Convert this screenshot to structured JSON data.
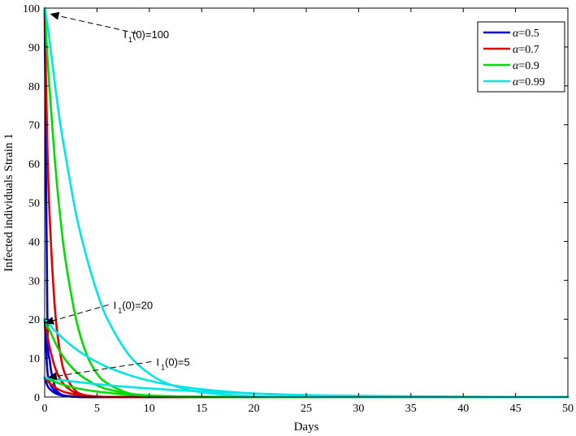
{
  "chart_data": {
    "type": "line",
    "title": "",
    "xlabel": "Days",
    "ylabel": "Infected individuals Strain 1",
    "xlim": [
      0,
      50
    ],
    "ylim": [
      0,
      100
    ],
    "x_ticks": [
      0,
      5,
      10,
      15,
      20,
      25,
      30,
      35,
      40,
      45,
      50
    ],
    "y_ticks": [
      0,
      10,
      20,
      30,
      40,
      50,
      60,
      70,
      80,
      90,
      100
    ],
    "grid": false,
    "legend_position": "top-right",
    "legend_symbol": "α",
    "x": [
      0,
      0.25,
      0.5,
      1,
      1.5,
      2,
      3,
      4,
      5,
      6,
      8,
      10,
      12,
      15,
      20,
      25,
      30,
      40,
      50
    ],
    "series": [
      {
        "name": "=0.5",
        "color": "#0000d9",
        "initial_conditions": [
          {
            "I0": 100,
            "values": [
              100,
              22,
              9,
              2.5,
              0.8,
              0.3,
              0.05,
              0,
              0,
              0,
              0,
              0,
              0,
              0,
              0,
              0,
              0,
              0,
              0
            ]
          },
          {
            "I0": 20,
            "values": [
              20,
              7,
              3.5,
              1.5,
              0.7,
              0.3,
              0.05,
              0,
              0,
              0,
              0,
              0,
              0,
              0,
              0,
              0,
              0,
              0,
              0
            ]
          },
          {
            "I0": 5,
            "values": [
              5,
              3,
              2,
              1,
              0.5,
              0.3,
              0.1,
              0,
              0,
              0,
              0,
              0,
              0,
              0,
              0,
              0,
              0,
              0,
              0
            ]
          }
        ]
      },
      {
        "name": "=0.7",
        "color": "#e00000",
        "initial_conditions": [
          {
            "I0": 100,
            "values": [
              100,
              65,
              45,
              22,
              11,
              5.5,
              1.5,
              0.4,
              0.1,
              0,
              0,
              0,
              0,
              0,
              0,
              0,
              0,
              0,
              0
            ]
          },
          {
            "I0": 20,
            "values": [
              20,
              16,
              12.5,
              7.5,
              4.5,
              2.8,
              1,
              0.4,
              0.15,
              0,
              0,
              0,
              0,
              0,
              0,
              0,
              0,
              0,
              0
            ]
          },
          {
            "I0": 5,
            "values": [
              5,
              4.2,
              3.5,
              2.5,
              1.7,
              1.2,
              0.6,
              0.3,
              0.1,
              0,
              0,
              0,
              0,
              0,
              0,
              0,
              0,
              0,
              0
            ]
          }
        ]
      },
      {
        "name": "=0.9",
        "color": "#00dd00",
        "initial_conditions": [
          {
            "I0": 100,
            "values": [
              100,
              88,
              78,
              60,
              46,
              35,
              20,
              11,
              6,
              3.5,
              1,
              0.3,
              0.1,
              0,
              0,
              0,
              0,
              0,
              0
            ]
          },
          {
            "I0": 20,
            "values": [
              20,
              18,
              17,
              14,
              11.5,
              9.5,
              6.5,
              4.5,
              3,
              2,
              0.9,
              0.4,
              0.2,
              0.05,
              0,
              0,
              0,
              0,
              0
            ]
          },
          {
            "I0": 5,
            "values": [
              5,
              4.7,
              4.4,
              3.9,
              3.4,
              3,
              2.3,
              1.8,
              1.4,
              1.1,
              0.6,
              0.35,
              0.2,
              0.1,
              0,
              0,
              0,
              0,
              0
            ]
          }
        ]
      },
      {
        "name": "=0.99",
        "color": "#00e5e5",
        "initial_conditions": [
          {
            "I0": 100,
            "values": [
              100,
              96,
              91,
              80,
              70,
              62,
              47,
              36,
              27,
              20,
              11,
              6,
              3.2,
              1.2,
              0.2,
              0.05,
              0,
              0,
              0
            ]
          },
          {
            "I0": 20,
            "values": [
              20,
              19.3,
              18.5,
              17,
              15.7,
              14.5,
              12.3,
              10.5,
              9,
              7.7,
              5.7,
              4.2,
              3.1,
              2,
              0.9,
              0.4,
              0.2,
              0.05,
              0
            ]
          },
          {
            "I0": 5,
            "values": [
              5,
              4.9,
              4.8,
              4.6,
              4.4,
              4.2,
              3.9,
              3.6,
              3.3,
              3.05,
              2.6,
              2.2,
              1.85,
              1.45,
              0.9,
              0.5,
              0.3,
              0.1,
              0
            ]
          }
        ]
      }
    ],
    "annotations": [
      {
        "text_main": "I",
        "text_sub": "1",
        "text_rest": "(0)=100",
        "arrow_to": [
          0.5,
          98.5
        ],
        "arrow_from": [
          8.8,
          93.5
        ]
      },
      {
        "text_main": "I",
        "text_sub": "1",
        "text_rest": "(0)=20",
        "arrow_to": [
          0,
          19
        ],
        "arrow_from": [
          6.1,
          23.7
        ]
      },
      {
        "text_main": "I",
        "text_sub": "1",
        "text_rest": "(0)=5",
        "arrow_to": [
          0.3,
          5
        ],
        "arrow_from": [
          10.2,
          9.1
        ]
      }
    ]
  }
}
